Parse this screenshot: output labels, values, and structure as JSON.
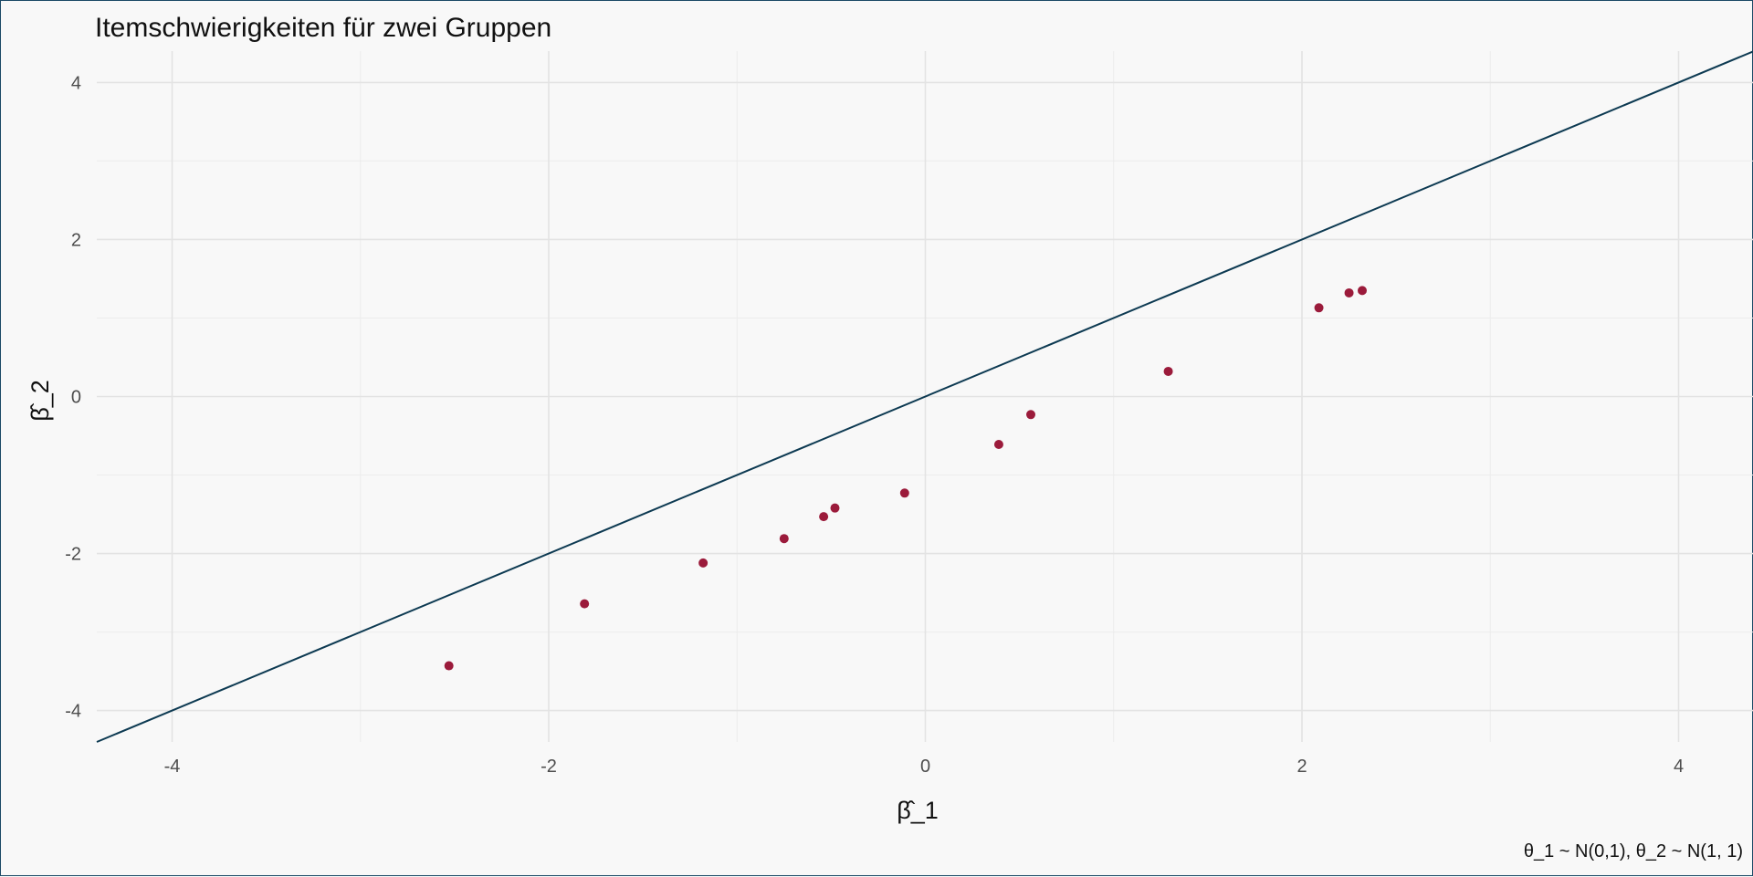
{
  "chart_data": {
    "type": "scatter",
    "title": "Itemschwierigkeiten für zwei Gruppen",
    "xlabel": "β̂_1",
    "ylabel": "β̂_2",
    "caption": "θ_1 ~ N(0,1), θ_2 ~ N(1, 1)",
    "xlim": [
      -4.4,
      4.4
    ],
    "ylim": [
      -4.4,
      4.4
    ],
    "x_ticks": [
      -4,
      -2,
      0,
      2,
      4
    ],
    "y_ticks": [
      -4,
      -2,
      0,
      2,
      4
    ],
    "x_tick_labels": [
      "-4",
      "-2",
      "0",
      "2",
      "4"
    ],
    "y_tick_labels": [
      "-4",
      "-2",
      "0",
      "2",
      "4"
    ],
    "grid": true,
    "reference_line": {
      "type": "identity",
      "slope": 1,
      "intercept": 0,
      "color": "#0d3a52"
    },
    "point_color": "#9b1b3b",
    "background_color": "#f8f8f8",
    "points": [
      {
        "x": -2.53,
        "y": -3.43
      },
      {
        "x": -1.81,
        "y": -2.64
      },
      {
        "x": -1.18,
        "y": -2.12
      },
      {
        "x": -0.75,
        "y": -1.81
      },
      {
        "x": -0.54,
        "y": -1.53
      },
      {
        "x": -0.48,
        "y": -1.42
      },
      {
        "x": -0.11,
        "y": -1.23
      },
      {
        "x": 0.39,
        "y": -0.61
      },
      {
        "x": 0.56,
        "y": -0.23
      },
      {
        "x": 1.29,
        "y": 0.32
      },
      {
        "x": 2.09,
        "y": 1.13
      },
      {
        "x": 2.25,
        "y": 1.32
      },
      {
        "x": 2.32,
        "y": 1.35
      }
    ]
  }
}
